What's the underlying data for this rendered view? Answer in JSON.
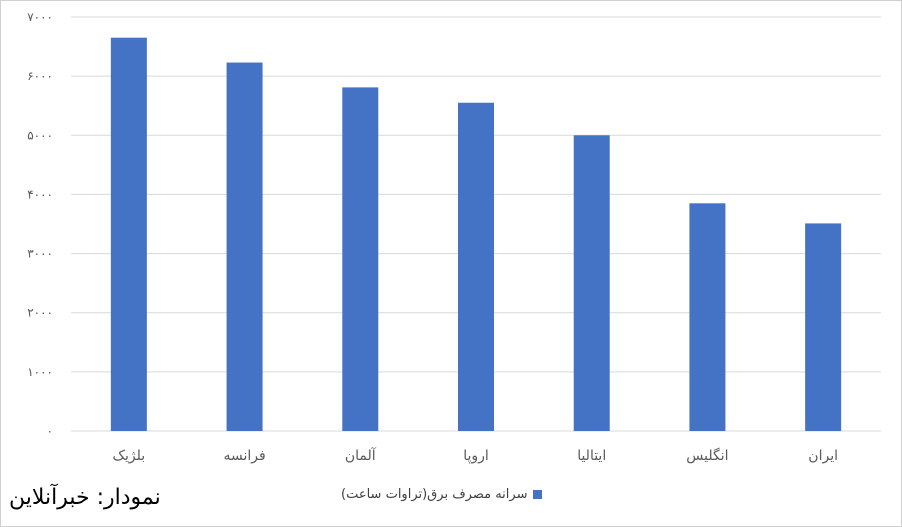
{
  "chart_data": {
    "type": "bar",
    "categories": [
      "بلژیک",
      "فرانسه",
      "آلمان",
      "اروپا",
      "ایتالیا",
      "انگلیس",
      "ایران"
    ],
    "series": [
      {
        "name": "سرانه مصرف برق(تراوات ساعت)",
        "values": [
          6650,
          6230,
          5810,
          5550,
          5000,
          3850,
          3510
        ]
      }
    ],
    "y_ticks": [
      0,
      1000,
      2000,
      3000,
      4000,
      5000,
      6000,
      7000
    ],
    "y_tick_labels": [
      "۰",
      "۱۰۰۰",
      "۲۰۰۰",
      "۳۰۰۰",
      "۴۰۰۰",
      "۵۰۰۰",
      "۶۰۰۰",
      "۷۰۰۰"
    ],
    "ylim": [
      0,
      7000
    ],
    "grid": true,
    "legend_position": "bottom",
    "bar_color": "#4472C4"
  },
  "credit": "نمودار: خبرآنلاین"
}
